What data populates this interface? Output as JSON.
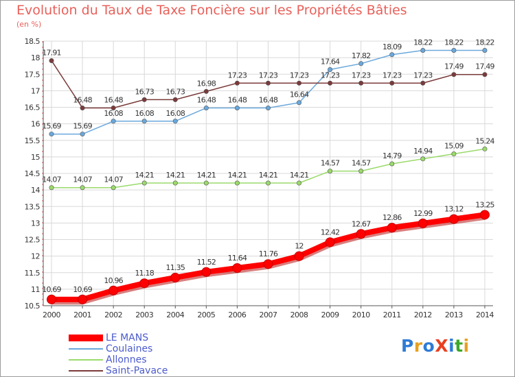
{
  "title": "Evolution du Taux de Taxe Foncière sur les Propriétés Bâties",
  "subtitle": "(en %)",
  "logo_text": "ProXiti",
  "chart_data": {
    "type": "line",
    "title": "Evolution du Taux de Taxe Foncière sur les Propriétés Bâties",
    "ylabel": "(en %)",
    "xlabel": "",
    "x": [
      "2000",
      "2001",
      "2002",
      "2003",
      "2004",
      "2005",
      "2006",
      "2007",
      "2008",
      "2009",
      "2010",
      "2011",
      "2012",
      "2013",
      "2014"
    ],
    "ylim": [
      10.5,
      18.5
    ],
    "yticks": [
      "10.5",
      "11",
      "11.5",
      "12",
      "12.5",
      "13",
      "13.5",
      "14",
      "14.5",
      "15",
      "15.5",
      "16",
      "16.5",
      "17",
      "17.5",
      "18",
      "18.5"
    ],
    "grid": true,
    "legend_position": "bottom-left",
    "series": [
      {
        "name": "LE MANS",
        "color": "#ff0000",
        "values": [
          10.69,
          10.69,
          10.96,
          11.18,
          11.35,
          11.52,
          11.64,
          11.76,
          12,
          12.42,
          12.67,
          12.86,
          12.99,
          13.12,
          13.25
        ],
        "labels": [
          "10.69",
          "10.69",
          "10.96",
          "11.18",
          "11.35",
          "11.52",
          "11.64",
          "11.76",
          "12",
          "12.42",
          "12.67",
          "12.86",
          "12.99",
          "13.12",
          "13.25"
        ]
      },
      {
        "name": "Coulaines",
        "color": "#6aa8dc",
        "values": [
          15.69,
          15.69,
          16.08,
          16.08,
          16.08,
          16.48,
          16.48,
          16.48,
          16.64,
          17.64,
          17.82,
          18.09,
          18.22,
          18.22,
          18.22
        ],
        "labels": [
          "15.69",
          "15.69",
          "16.08",
          "16.08",
          "16.08",
          "16.48",
          "16.48",
          "16.48",
          "16.64",
          "17.64",
          "17.82",
          "18.09",
          "18.22",
          "18.22",
          "18.22"
        ]
      },
      {
        "name": "Allonnes",
        "color": "#9ada6a",
        "values": [
          14.07,
          14.07,
          14.07,
          14.21,
          14.21,
          14.21,
          14.21,
          14.21,
          14.21,
          14.57,
          14.57,
          14.79,
          14.94,
          15.09,
          15.24
        ],
        "labels": [
          "14.07",
          "14.07",
          "14.07",
          "14.21",
          "14.21",
          "14.21",
          "14.21",
          "14.21",
          "14.21",
          "14.57",
          "14.57",
          "14.79",
          "14.94",
          "15.09",
          "15.24"
        ]
      },
      {
        "name": "Saint-Pavace",
        "color": "#7b3a3a",
        "values": [
          17.91,
          16.48,
          16.48,
          16.73,
          16.73,
          16.98,
          17.23,
          17.23,
          17.23,
          17.23,
          17.23,
          17.23,
          17.23,
          17.49,
          17.49
        ],
        "labels": [
          "17.91",
          "16.48",
          "16.48",
          "16.73",
          "16.73",
          "16.98",
          "17.23",
          "17.23",
          "17.23",
          "17.23",
          "17.23",
          "17.23",
          "17.23",
          "17.49",
          "17.49"
        ]
      }
    ]
  }
}
